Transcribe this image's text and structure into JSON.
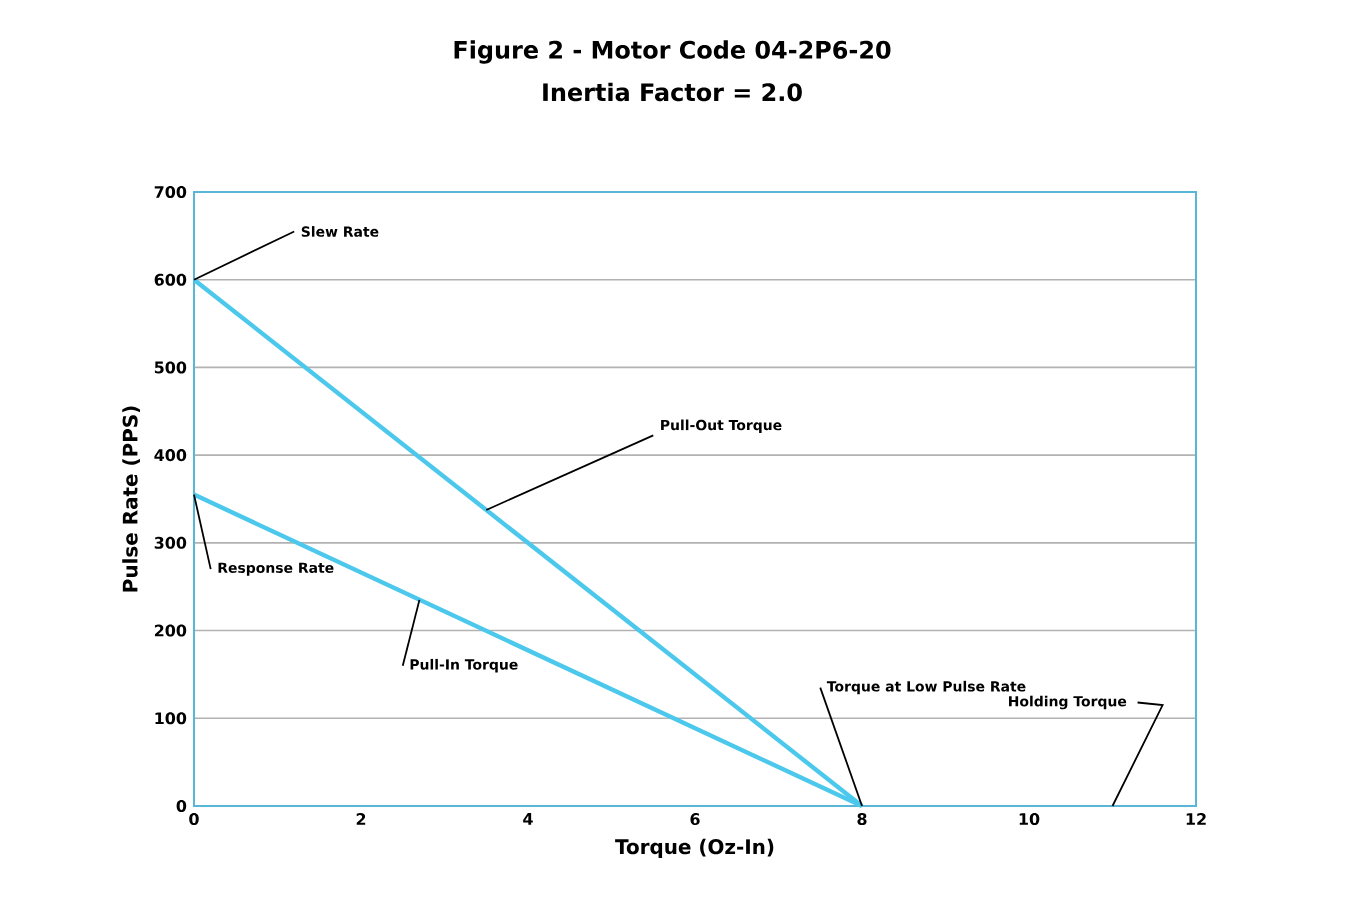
{
  "chart_data": {
    "type": "line",
    "title": "Figure 2 - Motor Code 04-2P6-20",
    "subtitle": "Inertia Factor = 2.0",
    "xlabel": "Torque (Oz-In)",
    "ylabel": "Pulse Rate (PPS)",
    "x": [
      0,
      8
    ],
    "series": [
      {
        "color": "#4cc8ec",
        "values": [
          600,
          0
        ]
      },
      {
        "color": "#4cc8ec",
        "values": [
          355,
          0
        ]
      }
    ],
    "xlim": [
      0,
      12
    ],
    "ylim": [
      0,
      700
    ],
    "xticks": [
      0,
      2,
      4,
      6,
      8,
      10,
      12
    ],
    "yticks": [
      0,
      100,
      200,
      300,
      400,
      500,
      600,
      700
    ],
    "grid": "y",
    "annotations": [
      {
        "text": "Slew Rate",
        "x": 0,
        "y": 600
      },
      {
        "text": "Pull-Out Torque",
        "x": 3.5,
        "y": 337.5
      },
      {
        "text": "Response Rate",
        "x": 0,
        "y": 355
      },
      {
        "text": "Pull-In Torque",
        "x": 2.7,
        "y": 235
      },
      {
        "text": "Torque at Low Pulse Rate",
        "x": 8,
        "y": 0
      },
      "Holding Torque"
    ]
  }
}
